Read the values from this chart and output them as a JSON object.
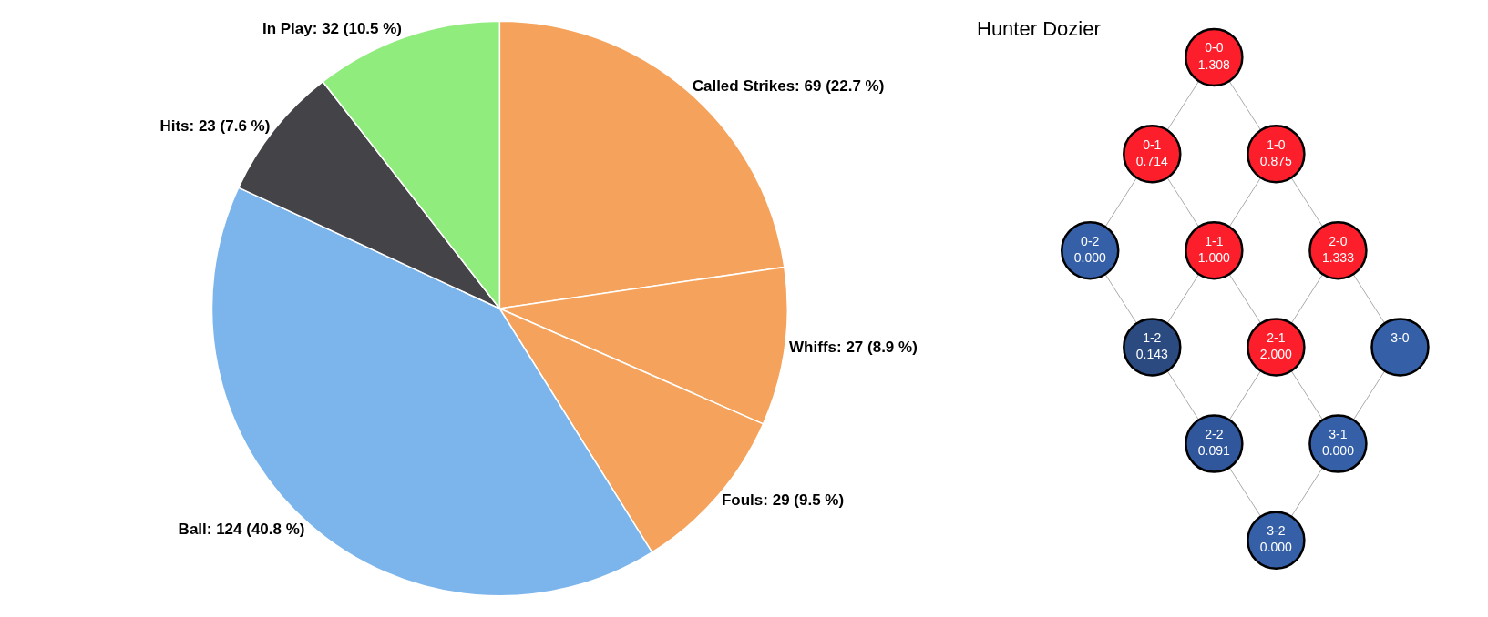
{
  "chart_data": [
    {
      "type": "pie",
      "categories": [
        "Called Strikes: 69 (22.7 %)",
        "Whiffs: 27 (8.9 %)",
        "Fouls: 29 (9.5 %)",
        "Ball: 124 (40.8 %)",
        "Hits: 23 (7.6 %)",
        "In Play: 32 (10.5 %)"
      ],
      "values": [
        69,
        27,
        29,
        124,
        23,
        32
      ],
      "colors": [
        "#f5a35c",
        "#f5a35c",
        "#f5a35c",
        "#7cb5ec",
        "#434348",
        "#90ed7d"
      ]
    },
    {
      "type": "other",
      "title": "Hunter Dozier",
      "categories": [
        "0-0",
        "0-1",
        "0-2",
        "1-0",
        "1-1",
        "1-2",
        "2-0",
        "2-1",
        "2-2",
        "3-0",
        "3-1",
        "3-2"
      ],
      "values": [
        1.308,
        0.714,
        0.0,
        0.875,
        1.0,
        0.143,
        1.333,
        2.0,
        0.091,
        null,
        0.0,
        0.0
      ],
      "value_labels": [
        "1.308",
        "0.714",
        "0.000",
        "0.875",
        "1.000",
        "0.143",
        "1.333",
        "2.000",
        "0.091",
        null,
        "0.000",
        "0.000"
      ],
      "colors": [
        "#fc1f2b",
        "#fc1f2b",
        "#3560a8",
        "#fc1f2b",
        "#fc1f2b",
        "#2a4a80",
        "#fc1f2b",
        "#fc1f2b",
        "#30579c",
        "#3560a8",
        "#3560a8",
        "#3560a8"
      ]
    }
  ]
}
